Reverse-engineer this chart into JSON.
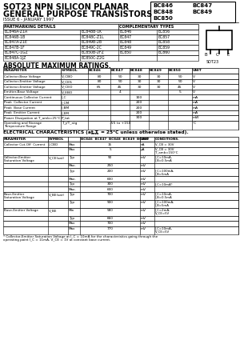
{
  "title_line1": "SOT23 NPN SILICON PLANAR",
  "title_line2": "GENERAL PURPOSE TRANSISTORS",
  "issue": "ISSUE 6 - JANUARY 1997",
  "bg_color": "#ffffff",
  "partmarking_rows": [
    [
      "BC846A-Z1A",
      "BC848B-1K",
      "BC846",
      "BC856"
    ],
    [
      "BC846B-1B",
      "BC848C-Z1L",
      "BC847",
      "BC857"
    ],
    [
      "BC847A-Z1E",
      "BC849B-2B",
      "BC848",
      "BC858"
    ],
    [
      "BC847B-1F",
      "BC849C-2C",
      "BC849",
      "BC859"
    ],
    [
      "BC847C-1GZ",
      "BC850B-2FZ",
      "BC850",
      "BC860"
    ],
    [
      "BC848A-1JZ",
      "BC850C-Z2G",
      "",
      ""
    ]
  ],
  "abs_max_rows": [
    [
      "Collector-Base Voltage",
      "V_CBO",
      "80",
      "50",
      "30",
      "30",
      "50",
      "V"
    ],
    [
      "Collector-Emitter Voltage",
      "V_CES",
      "80",
      "50",
      "30",
      "30",
      "50",
      "V"
    ],
    [
      "Collector-Emitter Voltage",
      "V_CEO",
      "65",
      "45",
      "30",
      "30",
      "45",
      "V"
    ],
    [
      "Emitter-Base Voltage",
      "V_EBO",
      "",
      "4",
      "",
      "",
      "5",
      "V"
    ],
    [
      "Continuous Collector Current",
      "I_C",
      "",
      "",
      "100",
      "",
      "",
      "mA"
    ],
    [
      "Peak  Collector Current",
      "I_CM",
      "",
      "",
      "200",
      "",
      "",
      "mA"
    ],
    [
      "Peak  Base Current",
      "I_BM",
      "",
      "",
      "200",
      "",
      "",
      "mA"
    ],
    [
      "Peak  Emitter Current",
      "I_EM",
      "",
      "",
      "200",
      "",
      "",
      "mA"
    ],
    [
      "Power Dissipation at T_amb=25°C",
      "P_tot",
      "",
      "",
      "300",
      "",
      "",
      "mW"
    ],
    [
      "Operating and Storage\nTemperature Range",
      "T_j/T_stg",
      "",
      "-55 to +150",
      "",
      "",
      "",
      "°C"
    ]
  ],
  "elec_rows": [
    [
      "Collector Cut-Off  Current",
      "I_CBO",
      "Max",
      "15",
      "nA",
      "V_CB = 30V"
    ],
    [
      "",
      "",
      "Max",
      "5",
      "μA",
      "V_CB = 30V\nT_amb=150°C"
    ],
    [
      "Collector-Emitter\nSaturation Voltage",
      "V_CE(sat)",
      "Typ",
      "90",
      "mV",
      "I_C=10mA,\nI_B=0.5mA"
    ],
    [
      "",
      "",
      "Max.",
      "250",
      "mV",
      ""
    ],
    [
      "",
      "",
      "Typ",
      "200",
      "mV",
      "I_C=100mA,\nI_B=5mA"
    ],
    [
      "",
      "",
      "Max.",
      "600",
      "mV",
      ""
    ],
    [
      "",
      "",
      "Typ",
      "300",
      "mV",
      "I_C=10mA*"
    ],
    [
      "",
      "",
      "Max.",
      "600",
      "mV",
      ""
    ],
    [
      "Base-Emitter\nSaturation Voltage",
      "V_BE(sat)",
      "Typ",
      "700",
      "mV",
      "I_C=10mA,\nI_B=0.5mA"
    ],
    [
      "",
      "",
      "Typ",
      "900",
      "mV",
      "I_C=100mA,\nI_B=5mA"
    ],
    [
      "Base-Emitter Voltage",
      "V_BE",
      "Min",
      "580",
      "mV",
      "I_C=2mA,\nV_CE=5V"
    ],
    [
      "",
      "",
      "Typ",
      "660",
      "mV",
      ""
    ],
    [
      "",
      "",
      "Max",
      "700",
      "mV",
      ""
    ],
    [
      "",
      "",
      "Max",
      "770",
      "mV",
      "I_C=10mA,\nV_CE=5V"
    ]
  ],
  "footnote_line1": "* Collector-Emitter Saturation Voltage at I_C = 10mA for the characteristics going through the",
  "footnote_line2": "operating point I_C = 11mA, V_CE = 1V at constant base current."
}
